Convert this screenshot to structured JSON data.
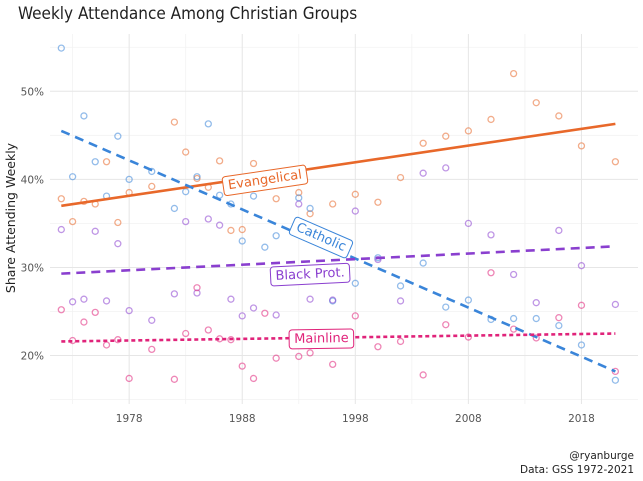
{
  "chart_data": {
    "type": "scatter",
    "title": "Weekly Attendance Among Christian Groups",
    "xlabel": "",
    "ylabel": "Share Attending Weekly",
    "xlim": [
      1971,
      2023
    ],
    "ylim": [
      0.145,
      0.565
    ],
    "x_ticks": [
      1978,
      1988,
      1998,
      2008,
      2018
    ],
    "y_ticks": [
      0.2,
      0.3,
      0.4,
      0.5
    ],
    "y_tick_labels": [
      "20%",
      "30%",
      "40%",
      "50%"
    ],
    "grid": true,
    "legend": "labels-on-lines",
    "caption": [
      "@ryanburge",
      "Data: GSS 1972-2021"
    ],
    "series": [
      {
        "name": "Evangelical",
        "color": "#e8682a",
        "line_style": "solid",
        "trend": [
          [
            1972,
            0.37
          ],
          [
            2021,
            0.463
          ]
        ],
        "label_at": [
          1990,
          0.4
        ],
        "points": [
          [
            1972,
            0.378
          ],
          [
            1973,
            0.352
          ],
          [
            1974,
            0.375
          ],
          [
            1975,
            0.372
          ],
          [
            1976,
            0.42
          ],
          [
            1977,
            0.351
          ],
          [
            1978,
            0.385
          ],
          [
            1980,
            0.392
          ],
          [
            1982,
            0.465
          ],
          [
            1983,
            0.431
          ],
          [
            1984,
            0.401
          ],
          [
            1985,
            0.391
          ],
          [
            1986,
            0.421
          ],
          [
            1987,
            0.342
          ],
          [
            1988,
            0.343
          ],
          [
            1989,
            0.418
          ],
          [
            1990,
            0.394
          ],
          [
            1991,
            0.378
          ],
          [
            1993,
            0.385
          ],
          [
            1994,
            0.361
          ],
          [
            1996,
            0.372
          ],
          [
            1998,
            0.383
          ],
          [
            2000,
            0.374
          ],
          [
            2002,
            0.402
          ],
          [
            2004,
            0.441
          ],
          [
            2006,
            0.449
          ],
          [
            2008,
            0.455
          ],
          [
            2010,
            0.468
          ],
          [
            2012,
            0.52
          ],
          [
            2014,
            0.487
          ],
          [
            2016,
            0.472
          ],
          [
            2018,
            0.438
          ],
          [
            2021,
            0.42
          ]
        ]
      },
      {
        "name": "Catholic",
        "color": "#3a85d9",
        "line_style": "dashed",
        "trend": [
          [
            1972,
            0.455
          ],
          [
            2021,
            0.182
          ]
        ],
        "label_at": [
          1995,
          0.335
        ],
        "points": [
          [
            1972,
            0.549
          ],
          [
            1973,
            0.403
          ],
          [
            1974,
            0.472
          ],
          [
            1975,
            0.42
          ],
          [
            1976,
            0.381
          ],
          [
            1977,
            0.449
          ],
          [
            1978,
            0.4
          ],
          [
            1980,
            0.409
          ],
          [
            1982,
            0.367
          ],
          [
            1983,
            0.386
          ],
          [
            1984,
            0.403
          ],
          [
            1985,
            0.463
          ],
          [
            1986,
            0.382
          ],
          [
            1987,
            0.372
          ],
          [
            1988,
            0.33
          ],
          [
            1989,
            0.381
          ],
          [
            1990,
            0.323
          ],
          [
            1991,
            0.336
          ],
          [
            1993,
            0.379
          ],
          [
            1994,
            0.367
          ],
          [
            1996,
            0.262
          ],
          [
            1998,
            0.282
          ],
          [
            2000,
            0.311
          ],
          [
            2002,
            0.279
          ],
          [
            2004,
            0.305
          ],
          [
            2006,
            0.255
          ],
          [
            2008,
            0.263
          ],
          [
            2010,
            0.241
          ],
          [
            2012,
            0.242
          ],
          [
            2014,
            0.242
          ],
          [
            2016,
            0.234
          ],
          [
            2018,
            0.212
          ],
          [
            2021,
            0.172
          ]
        ]
      },
      {
        "name": "Black Prot.",
        "color": "#8a3fcf",
        "line_style": "dashed",
        "trend": [
          [
            1972,
            0.293
          ],
          [
            2021,
            0.324
          ]
        ],
        "label_at": [
          1994,
          0.293
        ],
        "points": [
          [
            1972,
            0.343
          ],
          [
            1973,
            0.261
          ],
          [
            1974,
            0.264
          ],
          [
            1975,
            0.341
          ],
          [
            1976,
            0.262
          ],
          [
            1977,
            0.327
          ],
          [
            1978,
            0.251
          ],
          [
            1980,
            0.24
          ],
          [
            1982,
            0.27
          ],
          [
            1983,
            0.352
          ],
          [
            1984,
            0.271
          ],
          [
            1985,
            0.355
          ],
          [
            1986,
            0.348
          ],
          [
            1987,
            0.264
          ],
          [
            1988,
            0.245
          ],
          [
            1989,
            0.254
          ],
          [
            1991,
            0.246
          ],
          [
            1993,
            0.372
          ],
          [
            1994,
            0.264
          ],
          [
            1996,
            0.263
          ],
          [
            1998,
            0.364
          ],
          [
            2000,
            0.309
          ],
          [
            2002,
            0.262
          ],
          [
            2004,
            0.407
          ],
          [
            2006,
            0.413
          ],
          [
            2008,
            0.35
          ],
          [
            2010,
            0.337
          ],
          [
            2012,
            0.292
          ],
          [
            2014,
            0.26
          ],
          [
            2016,
            0.342
          ],
          [
            2018,
            0.302
          ],
          [
            2021,
            0.258
          ]
        ]
      },
      {
        "name": "Mainline",
        "color": "#e0237a",
        "line_style": "dotted",
        "trend": [
          [
            1972,
            0.216
          ],
          [
            2021,
            0.225
          ]
        ],
        "label_at": [
          1995,
          0.22
        ],
        "points": [
          [
            1972,
            0.252
          ],
          [
            1973,
            0.217
          ],
          [
            1974,
            0.238
          ],
          [
            1975,
            0.249
          ],
          [
            1976,
            0.212
          ],
          [
            1977,
            0.218
          ],
          [
            1978,
            0.174
          ],
          [
            1980,
            0.207
          ],
          [
            1982,
            0.173
          ],
          [
            1983,
            0.225
          ],
          [
            1984,
            0.277
          ],
          [
            1985,
            0.229
          ],
          [
            1986,
            0.219
          ],
          [
            1987,
            0.218
          ],
          [
            1988,
            0.188
          ],
          [
            1989,
            0.174
          ],
          [
            1990,
            0.248
          ],
          [
            1991,
            0.197
          ],
          [
            1993,
            0.199
          ],
          [
            1994,
            0.203
          ],
          [
            1996,
            0.19
          ],
          [
            1998,
            0.245
          ],
          [
            2000,
            0.21
          ],
          [
            2002,
            0.216
          ],
          [
            2004,
            0.178
          ],
          [
            2006,
            0.235
          ],
          [
            2008,
            0.221
          ],
          [
            2010,
            0.294
          ],
          [
            2012,
            0.23
          ],
          [
            2014,
            0.22
          ],
          [
            2016,
            0.243
          ],
          [
            2018,
            0.257
          ],
          [
            2021,
            0.182
          ]
        ]
      }
    ]
  }
}
